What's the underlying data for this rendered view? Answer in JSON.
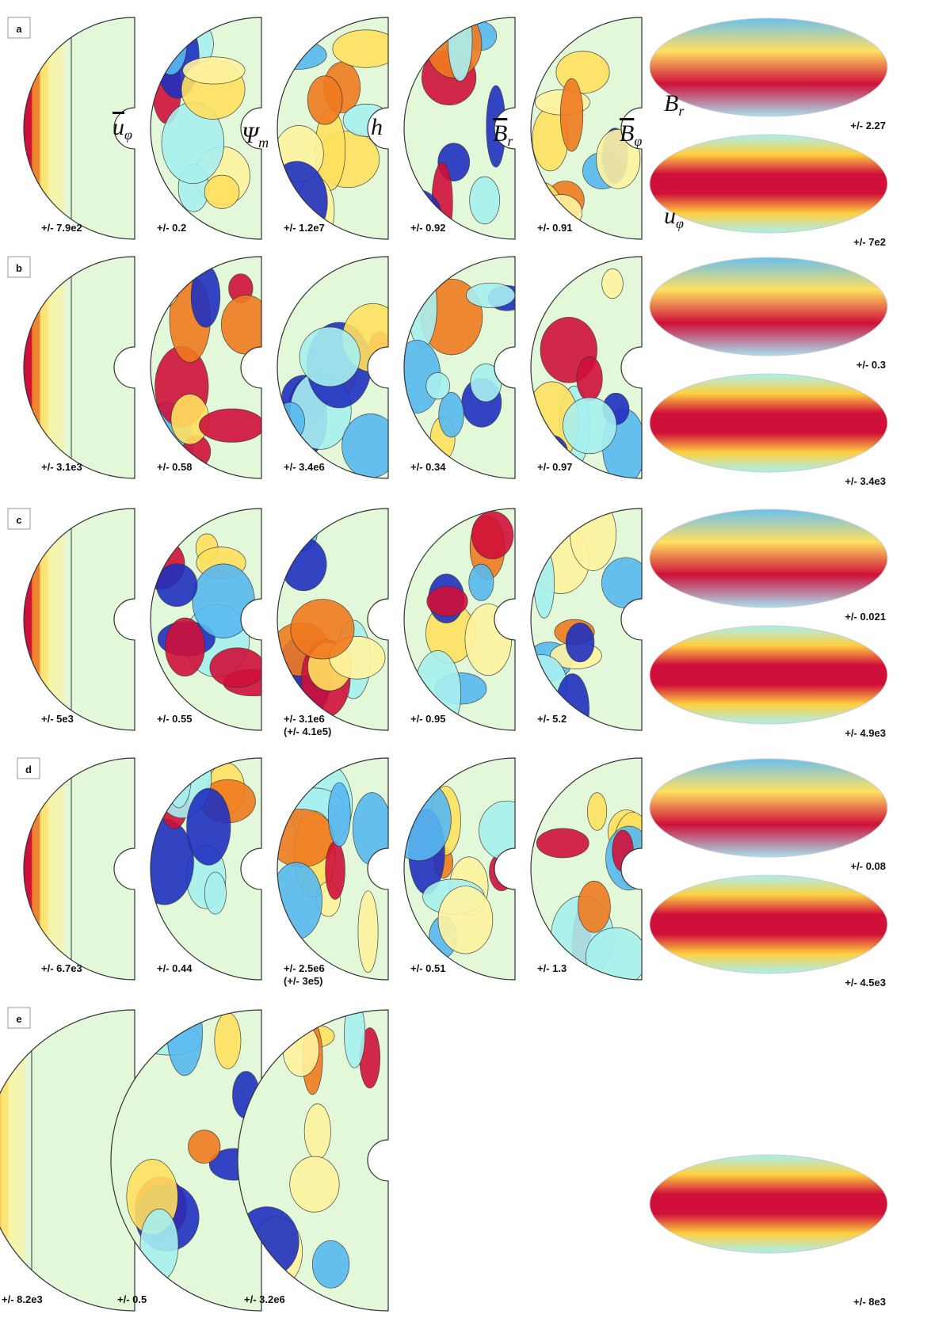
{
  "symbols": [
    {
      "text": "u",
      "sub": "φ",
      "bar": true
    },
    {
      "text": "Ψ",
      "sub": "m",
      "bar": false
    },
    {
      "text": "h",
      "bar": false
    },
    {
      "text": "B",
      "sub": "r",
      "bar": true
    },
    {
      "text": "B",
      "sub": "φ",
      "bar": true
    },
    {
      "text": "B",
      "sub": "r",
      "bar": false
    },
    {
      "text": "u",
      "sub": "φ",
      "bar": false
    }
  ],
  "rows": [
    {
      "label": "a",
      "panels": [
        [
          "+/- 7.9e2"
        ],
        [
          "+/- 0.2"
        ],
        [
          "+/- 1.2e7"
        ],
        [
          "+/- 0.92"
        ],
        [
          "+/- 0.91"
        ]
      ],
      "maps": [
        "+/- 2.27",
        "+/- 7e2"
      ]
    },
    {
      "label": "b",
      "panels": [
        [
          "+/- 3.1e3"
        ],
        [
          "+/- 0.58"
        ],
        [
          "+/- 3.4e6"
        ],
        [
          "+/- 0.34"
        ],
        [
          "+/- 0.97"
        ]
      ],
      "maps": [
        "+/- 0.3",
        "+/- 3.4e3"
      ]
    },
    {
      "label": "c",
      "panels": [
        [
          "+/- 5e3"
        ],
        [
          "+/- 0.55"
        ],
        [
          "+/- 3.1e6",
          "(+/- 4.1e5)"
        ],
        [
          "+/- 0.95"
        ],
        [
          "+/- 5.2"
        ]
      ],
      "maps": [
        "+/- 0.021",
        "+/- 4.9e3"
      ]
    },
    {
      "label": "d",
      "panels": [
        [
          "+/- 6.7e3"
        ],
        [
          "+/- 0.44"
        ],
        [
          "+/- 2.5e6",
          "(+/- 3e5)"
        ],
        [
          "+/- 0.51"
        ],
        [
          "+/- 1.3"
        ]
      ],
      "maps": [
        "+/- 0.08",
        "+/- 4.5e3"
      ]
    },
    {
      "label": "e",
      "panels": [
        [
          "+/- 8.2e3"
        ],
        [
          "+/- 0.5"
        ],
        [
          "+/- 3.2e6"
        ]
      ],
      "maps": [
        "+/- 8e3"
      ]
    }
  ]
}
